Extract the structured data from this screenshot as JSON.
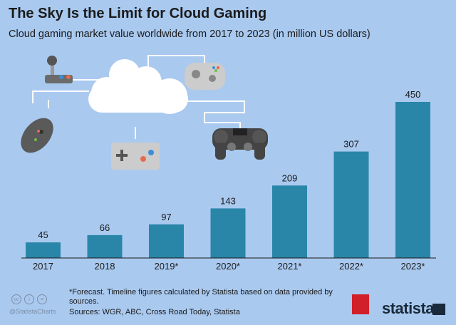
{
  "header": {
    "title": "The Sky Is the Limit for Cloud Gaming",
    "subtitle": "Cloud gaming market value worldwide from 2017 to 2023 (in million US dollars)"
  },
  "chart_data": {
    "type": "bar",
    "categories": [
      "2017",
      "2018",
      "2019*",
      "2020*",
      "2021*",
      "2022*",
      "2023*"
    ],
    "values": [
      45,
      66,
      97,
      143,
      209,
      307,
      450
    ],
    "ylim": [
      0,
      450
    ],
    "grid": false,
    "bar_color": "#2a86a8",
    "background": "#a9c9ef"
  },
  "footer": {
    "note": "*Forecast. Timeline figures calculated by Statista based on data provided by sources.",
    "sources": "Sources: WGR, ABC, Cross Road Today, Statista",
    "handle": "@StatistaCharts",
    "cc_icons": [
      "cc",
      "by",
      "nd"
    ],
    "partner_logo": "PC",
    "brand": "statista"
  }
}
